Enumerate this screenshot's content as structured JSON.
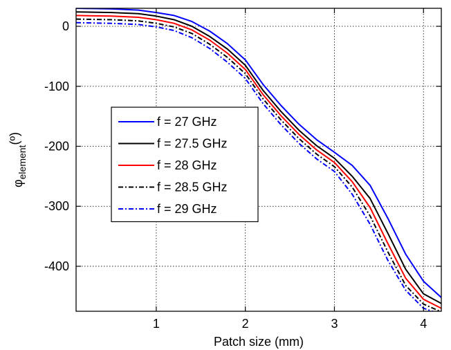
{
  "chart_data": {
    "type": "line",
    "xlabel": "Patch size (mm)",
    "ylabel_main": "φ",
    "ylabel_sub": "element",
    "ylabel_unit": "(º)",
    "xlim": [
      0.1,
      4.2
    ],
    "ylim": [
      -475,
      30
    ],
    "xticks": [
      1,
      2,
      3,
      4
    ],
    "yticks": [
      0,
      -100,
      -200,
      -300,
      -400
    ],
    "grid": true,
    "legend_position": "center-left",
    "x": [
      0.1,
      0.5,
      0.8,
      1.0,
      1.2,
      1.4,
      1.6,
      1.8,
      2.0,
      2.2,
      2.4,
      2.6,
      2.8,
      3.0,
      3.2,
      3.4,
      3.6,
      3.8,
      4.0,
      4.2
    ],
    "series": [
      {
        "name": "f = 27 GHz",
        "color": "#0000ff",
        "dash": "solid",
        "values": [
          30,
          29,
          27,
          23,
          18,
          8,
          -8,
          -29,
          -56,
          -97,
          -132,
          -163,
          -189,
          -210,
          -232,
          -265,
          -320,
          -380,
          -425,
          -452
        ]
      },
      {
        "name": "f = 27.5 GHz",
        "color": "#000000",
        "dash": "solid",
        "values": [
          24,
          23,
          21,
          17,
          11,
          0,
          -17,
          -38,
          -65,
          -107,
          -142,
          -173,
          -199,
          -220,
          -250,
          -287,
          -345,
          -405,
          -446,
          -462
        ]
      },
      {
        "name": "f = 28 GHz",
        "color": "#ff0000",
        "dash": "solid",
        "values": [
          18,
          17,
          15,
          11,
          5,
          -6,
          -23,
          -45,
          -72,
          -114,
          -149,
          -180,
          -206,
          -227,
          -259,
          -302,
          -362,
          -420,
          -455,
          -470
        ]
      },
      {
        "name": "f = 28.5 GHz",
        "color": "#000000",
        "dash": "dashdot",
        "values": [
          12,
          11,
          9,
          5,
          -1,
          -12,
          -30,
          -52,
          -79,
          -121,
          -156,
          -187,
          -213,
          -234,
          -268,
          -316,
          -376,
          -432,
          -463,
          -476
        ]
      },
      {
        "name": "f = 29 GHz",
        "color": "#0000ff",
        "dash": "dashdot",
        "values": [
          6,
          5,
          3,
          -1,
          -7,
          -19,
          -37,
          -60,
          -87,
          -129,
          -164,
          -195,
          -221,
          -242,
          -280,
          -330,
          -390,
          -440,
          -470,
          -480
        ]
      }
    ]
  }
}
